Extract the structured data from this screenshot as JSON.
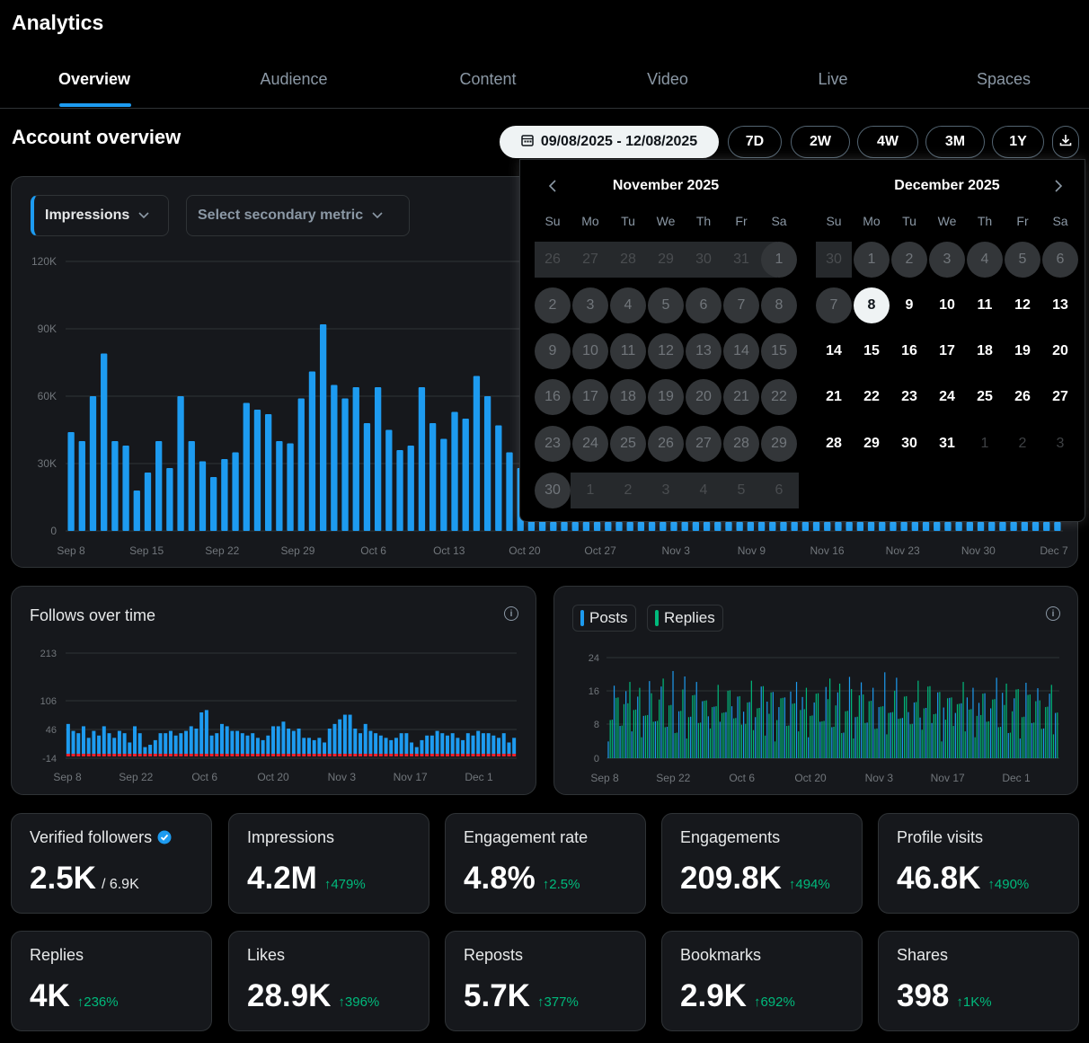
{
  "page_title": "Analytics",
  "tabs": [
    {
      "label": "Overview",
      "active": true
    },
    {
      "label": "Audience"
    },
    {
      "label": "Content"
    },
    {
      "label": "Video"
    },
    {
      "label": "Live"
    },
    {
      "label": "Spaces"
    }
  ],
  "account_overview": {
    "title": "Account overview",
    "date_range": "09/08/2025 - 12/08/2025",
    "ranges": [
      "7D",
      "2W",
      "4W",
      "3M",
      "1Y"
    ],
    "icons": {
      "calendar": "calendar-icon",
      "download": "download-icon"
    }
  },
  "main_chart": {
    "primary_metric": "Impressions",
    "secondary_placeholder": "Select secondary metric",
    "accent_color": "#1d9bf0"
  },
  "calendar": {
    "months": [
      {
        "title": "November 2025",
        "nav": "prev"
      },
      {
        "title": "December 2025",
        "nav": "next"
      }
    ],
    "weekdays": [
      "Su",
      "Mo",
      "Tu",
      "We",
      "Th",
      "Fr",
      "Sa"
    ],
    "selected_day": "8",
    "nov_days": [
      "26",
      "27",
      "28",
      "29",
      "30",
      "31",
      "1",
      "2",
      "3",
      "4",
      "5",
      "6",
      "7",
      "8",
      "9",
      "10",
      "11",
      "12",
      "13",
      "14",
      "15",
      "16",
      "17",
      "18",
      "19",
      "20",
      "21",
      "22",
      "23",
      "24",
      "25",
      "26",
      "27",
      "28",
      "29",
      "30",
      "1",
      "2",
      "3",
      "4",
      "5",
      "6"
    ],
    "dec_days": [
      "30",
      "1",
      "2",
      "3",
      "4",
      "5",
      "6",
      "7",
      "8",
      "9",
      "10",
      "11",
      "12",
      "13",
      "14",
      "15",
      "16",
      "17",
      "18",
      "19",
      "20",
      "21",
      "22",
      "23",
      "24",
      "25",
      "26",
      "27",
      "28",
      "29",
      "30",
      "31",
      "1",
      "2",
      "3"
    ]
  },
  "follows_panel": {
    "title": "Follows over time"
  },
  "posts_panel": {
    "legend": [
      "Posts",
      "Replies"
    ]
  },
  "chart_data": [
    {
      "type": "bar",
      "name": "Impressions",
      "yticks": [
        "120K",
        "90K",
        "60K",
        "30K",
        "0"
      ],
      "ylim": [
        0,
        120000
      ],
      "xtick_labels": [
        "Sep 8",
        "Sep 15",
        "Sep 22",
        "Sep 29",
        "Oct 6",
        "Oct 13",
        "Oct 20",
        "Oct 27",
        "Nov 3",
        "Nov 9",
        "Nov 16",
        "Nov 23",
        "Nov 30",
        "Dec 7"
      ],
      "values": [
        44000,
        40000,
        60000,
        79000,
        40000,
        38000,
        18000,
        26000,
        40000,
        28000,
        60000,
        40000,
        31000,
        24000,
        32000,
        35000,
        57000,
        54000,
        52000,
        40000,
        39000,
        59000,
        71000,
        92000,
        65000,
        59000,
        64000,
        48000,
        64000,
        45000,
        36000,
        38000,
        64000,
        48000,
        41000,
        53000,
        50000,
        69000,
        60000,
        47000,
        35000,
        28000,
        23000,
        29000,
        4000,
        4000,
        4000,
        4000,
        4000,
        4000,
        4000,
        4000,
        4000,
        4000,
        4000,
        4000,
        4000,
        4000,
        4000,
        4000,
        4000,
        4000,
        4000,
        4000,
        4000,
        4000,
        4000,
        4000,
        4000,
        4000,
        4000,
        4000,
        4000,
        4000,
        4000,
        4000,
        4000,
        4000,
        4000,
        4000,
        4000,
        4000,
        4000,
        4000,
        4000,
        4000,
        4000,
        4000,
        4000,
        4000,
        4000
      ],
      "grid": true
    },
    {
      "type": "bar",
      "name": "Follows over time",
      "yticks": [
        "213",
        "106",
        "46",
        "-14"
      ],
      "ylim": [
        -14,
        213
      ],
      "xtick_labels": [
        "Sep 8",
        "Sep 22",
        "Oct 6",
        "Oct 20",
        "Nov 3",
        "Nov 17",
        "Dec 1"
      ],
      "values": [
        60,
        45,
        40,
        55,
        30,
        45,
        35,
        55,
        40,
        30,
        45,
        40,
        20,
        55,
        40,
        10,
        15,
        25,
        40,
        40,
        45,
        35,
        40,
        45,
        55,
        50,
        85,
        90,
        35,
        40,
        60,
        55,
        45,
        45,
        40,
        35,
        40,
        30,
        25,
        35,
        55,
        55,
        65,
        50,
        45,
        50,
        30,
        30,
        25,
        30,
        20,
        50,
        60,
        70,
        80,
        80,
        50,
        40,
        60,
        45,
        40,
        35,
        30,
        25,
        30,
        40,
        40,
        20,
        10,
        25,
        35,
        35,
        45,
        40,
        35,
        40,
        30,
        25,
        40,
        35,
        45,
        40,
        40,
        35,
        30,
        40,
        20,
        30
      ],
      "negatives_color": "#f4212e",
      "grid": true
    },
    {
      "type": "bar",
      "name": "Posts/Replies",
      "yticks": [
        "24",
        "16",
        "8",
        "0"
      ],
      "ylim": [
        0,
        24
      ],
      "xtick_labels": [
        "Sep 8",
        "Sep 22",
        "Oct 6",
        "Oct 20",
        "Nov 3",
        "Nov 17",
        "Dec 1"
      ],
      "series": [
        {
          "name": "Posts",
          "color": "#1d9bf0"
        },
        {
          "name": "Replies",
          "color": "#00ba7c"
        }
      ],
      "grid": true
    }
  ],
  "stats": [
    {
      "label": "Verified followers",
      "value": "2.5K",
      "sub": "/ 6.9K",
      "verified": true
    },
    {
      "label": "Impressions",
      "value": "4.2M",
      "change": "↑479%"
    },
    {
      "label": "Engagement rate",
      "value": "4.8%",
      "change": "↑2.5%"
    },
    {
      "label": "Engagements",
      "value": "209.8K",
      "change": "↑494%"
    },
    {
      "label": "Profile visits",
      "value": "46.8K",
      "change": "↑490%"
    },
    {
      "label": "Replies",
      "value": "4K",
      "change": "↑236%"
    },
    {
      "label": "Likes",
      "value": "28.9K",
      "change": "↑396%"
    },
    {
      "label": "Reposts",
      "value": "5.7K",
      "change": "↑377%"
    },
    {
      "label": "Bookmarks",
      "value": "2.9K",
      "change": "↑692%"
    },
    {
      "label": "Shares",
      "value": "398",
      "change": "↑1K%"
    }
  ]
}
